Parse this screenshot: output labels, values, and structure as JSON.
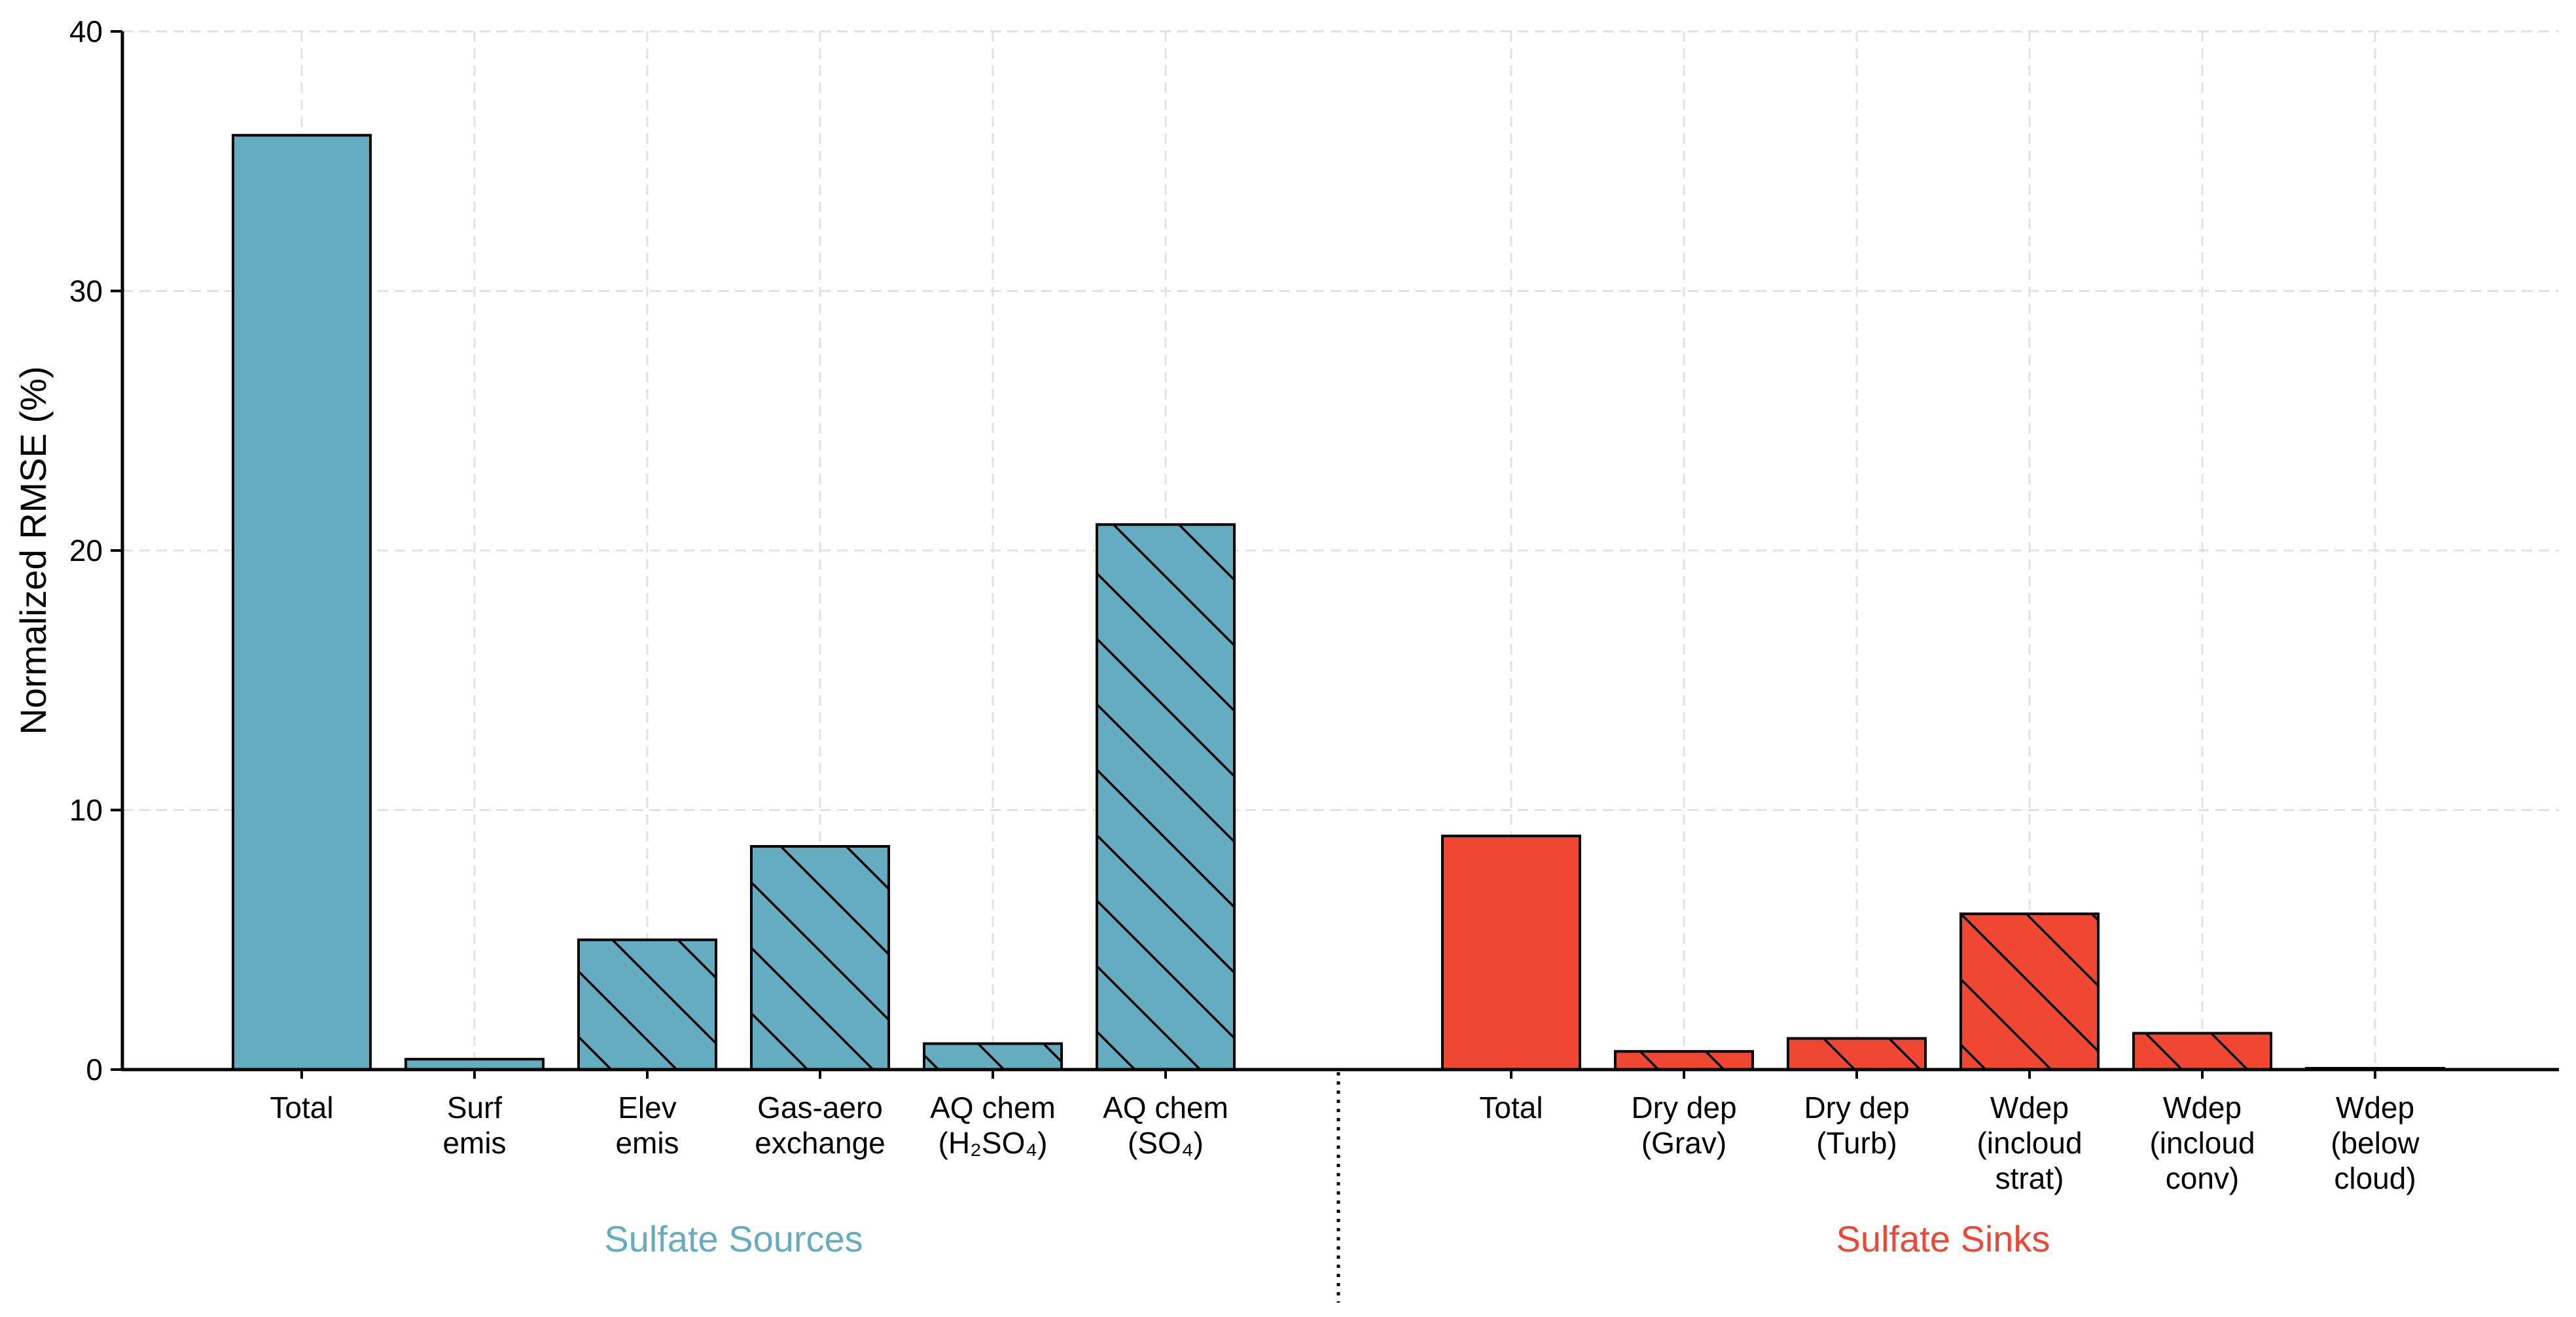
{
  "chart_data": {
    "type": "bar",
    "ylabel": "Normalized RMSE (%)",
    "ylim": [
      0,
      40
    ],
    "yticks": [
      0,
      10,
      20,
      30,
      40
    ],
    "grid": true,
    "groups": [
      {
        "title": "Sulfate Sources",
        "color": "#64acbf",
        "bars": [
          {
            "lines": [
              "Total"
            ],
            "value": 36.0,
            "hatched": false
          },
          {
            "lines": [
              "Surf",
              "emis"
            ],
            "value": 0.4,
            "hatched": false
          },
          {
            "lines": [
              "Elev",
              "emis"
            ],
            "value": 5.0,
            "hatched": true
          },
          {
            "lines": [
              "Gas-aero",
              "exchange"
            ],
            "value": 8.6,
            "hatched": true
          },
          {
            "lines": [
              "AQ chem",
              "(H₂SO₄)"
            ],
            "value": 1.0,
            "hatched": true
          },
          {
            "lines": [
              "AQ chem",
              "(SO₄)"
            ],
            "value": 21.0,
            "hatched": true
          }
        ]
      },
      {
        "title": "Sulfate Sinks",
        "color": "#ef4732",
        "bars": [
          {
            "lines": [
              "Total"
            ],
            "value": 9.0,
            "hatched": false
          },
          {
            "lines": [
              "Dry dep",
              "(Grav)"
            ],
            "value": 0.7,
            "hatched": true
          },
          {
            "lines": [
              "Dry dep",
              "(Turb)"
            ],
            "value": 1.2,
            "hatched": true
          },
          {
            "lines": [
              "Wdep",
              "(incloud",
              "strat)"
            ],
            "value": 6.0,
            "hatched": true
          },
          {
            "lines": [
              "Wdep",
              "(incloud",
              "conv)"
            ],
            "value": 1.4,
            "hatched": true
          },
          {
            "lines": [
              "Wdep",
              "(below",
              "cloud)"
            ],
            "value": 0.05,
            "hatched": false
          }
        ]
      }
    ]
  }
}
